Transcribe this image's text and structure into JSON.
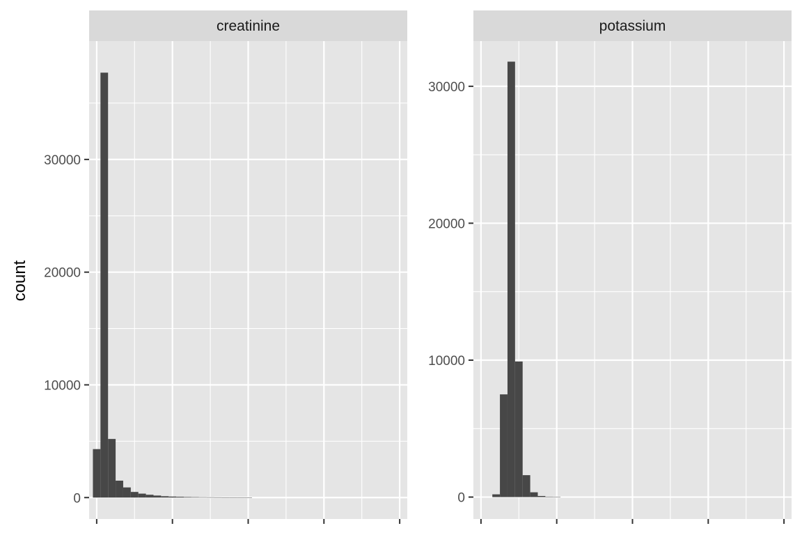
{
  "chart_data": {
    "type": "histogram",
    "ylabel": "count",
    "xlabel": "",
    "panel_background": "#e5e5e5",
    "strip_background": "#d9d9d9",
    "bar_color": "#474747",
    "grid_color": "#ffffff",
    "panels": [
      {
        "strip": "creatinine",
        "xlim": [
          -1,
          41
        ],
        "x_breaks_major": [
          0,
          10,
          20,
          30,
          40
        ],
        "x_breaks_minor": [
          5,
          15,
          25,
          35
        ],
        "ylim": [
          -1900,
          40500
        ],
        "y_ticks": [
          0,
          10000,
          20000,
          30000
        ],
        "y_tick_labels": [
          "0",
          "10000",
          "20000",
          "30000"
        ],
        "y_minor": [
          5000,
          15000,
          25000,
          35000
        ],
        "bin_width": 1,
        "bins": [
          {
            "x0": -0.5,
            "count": 4300
          },
          {
            "x0": 0.5,
            "count": 37700
          },
          {
            "x0": 1.5,
            "count": 5200
          },
          {
            "x0": 2.5,
            "count": 1500
          },
          {
            "x0": 3.5,
            "count": 900
          },
          {
            "x0": 4.5,
            "count": 500
          },
          {
            "x0": 5.5,
            "count": 350
          },
          {
            "x0": 6.5,
            "count": 250
          },
          {
            "x0": 7.5,
            "count": 180
          },
          {
            "x0": 8.5,
            "count": 120
          },
          {
            "x0": 9.5,
            "count": 90
          },
          {
            "x0": 10.5,
            "count": 70
          },
          {
            "x0": 11.5,
            "count": 50
          },
          {
            "x0": 12.5,
            "count": 40
          },
          {
            "x0": 13.5,
            "count": 30
          },
          {
            "x0": 14.5,
            "count": 25
          },
          {
            "x0": 15.5,
            "count": 20
          },
          {
            "x0": 16.5,
            "count": 15
          },
          {
            "x0": 17.5,
            "count": 10
          },
          {
            "x0": 18.5,
            "count": 8
          },
          {
            "x0": 19.5,
            "count": 6
          }
        ]
      },
      {
        "strip": "potassium",
        "xlim": [
          -1,
          41
        ],
        "x_breaks_major": [
          0,
          10,
          20,
          30,
          40
        ],
        "x_breaks_minor": [
          5,
          15,
          25,
          35
        ],
        "ylim": [
          -1600,
          33300
        ],
        "y_ticks": [
          0,
          10000,
          20000,
          30000
        ],
        "y_tick_labels": [
          "0",
          "10000",
          "20000",
          "30000"
        ],
        "y_minor": [
          5000,
          15000,
          25000
        ],
        "bin_width": 1,
        "bins": [
          {
            "x0": 1.5,
            "count": 200
          },
          {
            "x0": 2.5,
            "count": 7500
          },
          {
            "x0": 3.5,
            "count": 31800
          },
          {
            "x0": 4.5,
            "count": 9900
          },
          {
            "x0": 5.5,
            "count": 1600
          },
          {
            "x0": 6.5,
            "count": 350
          },
          {
            "x0": 7.5,
            "count": 80
          },
          {
            "x0": 8.5,
            "count": 30
          },
          {
            "x0": 9.5,
            "count": 10
          }
        ]
      }
    ]
  }
}
